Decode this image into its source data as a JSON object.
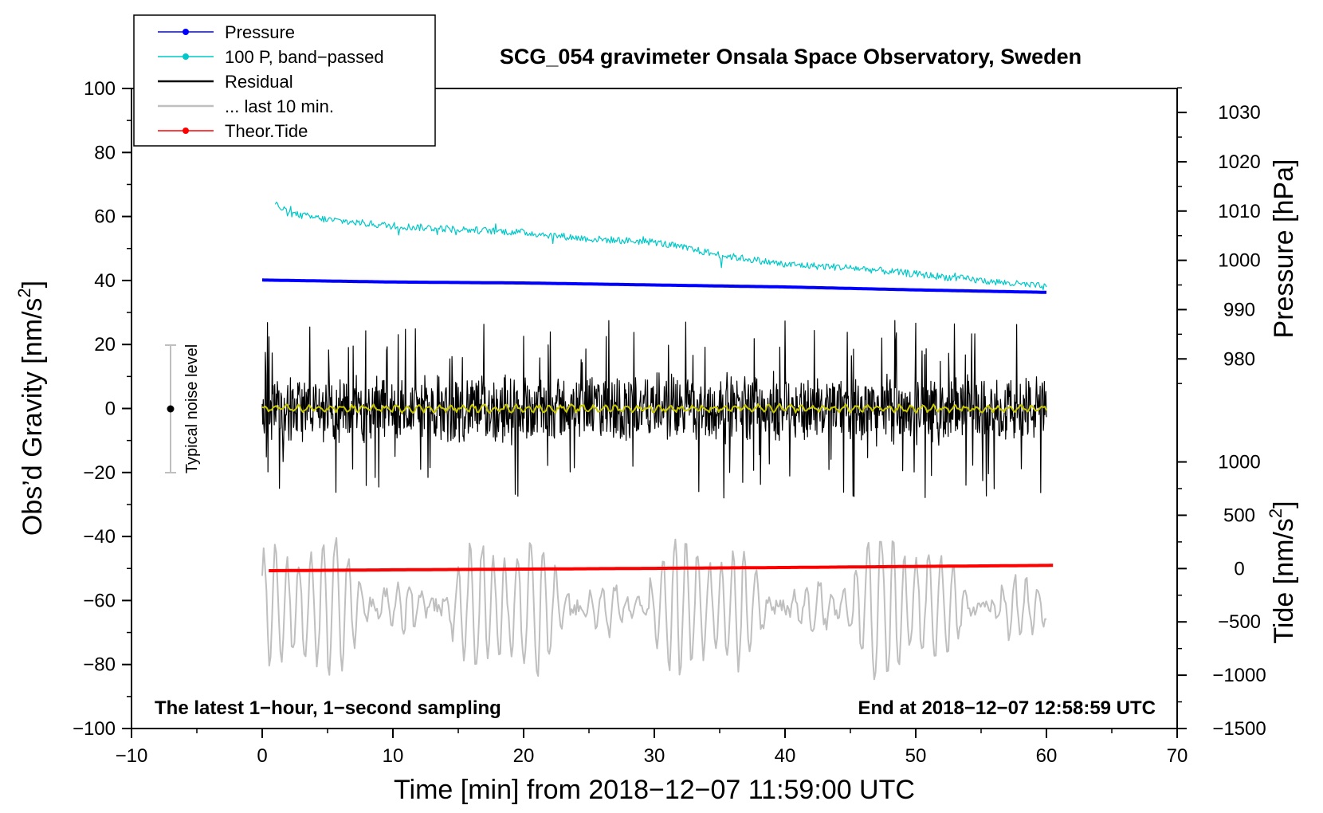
{
  "chart_data": {
    "type": "line",
    "title": "SCG_054 gravimeter Onsala Space Observatory, Sweden",
    "xlabel": "Time [min] from 2018−12−07 11:59:00 UTC",
    "ylabel_left_main": "Obs’d Gravity [nm/s",
    "ylabel_left_sup": "2",
    "ylabel_left_end": "]",
    "ylabel_right_pressure": "Pressure [hPa]",
    "ylabel_right_tide_main": "Tide [nm/s",
    "ylabel_right_tide_sup": "2",
    "ylabel_right_tide_end": "]",
    "xlim": [
      -10,
      70
    ],
    "ylim": [
      -100,
      100
    ],
    "x_ticks": [
      -10,
      0,
      10,
      20,
      30,
      40,
      50,
      60,
      70
    ],
    "x_tick_labels": [
      "−10",
      "0",
      "10",
      "20",
      "30",
      "40",
      "50",
      "60",
      "70"
    ],
    "y_ticks": [
      -100,
      -80,
      -60,
      -40,
      -20,
      0,
      20,
      40,
      60,
      80,
      100
    ],
    "y_tick_labels": [
      "−100",
      "−80",
      "−60",
      "−40",
      "−20",
      "0",
      "20",
      "40",
      "60",
      "80",
      "100"
    ],
    "pressure_axis": {
      "ticks": [
        980,
        990,
        1000,
        1010,
        1020,
        1030
      ],
      "labels": [
        "980",
        "990",
        "1000",
        "1010",
        "1020",
        "1030"
      ],
      "mapping": {
        "p1": 980,
        "g1": 15.5,
        "p2": 1030,
        "g2": 92.5
      }
    },
    "tide_axis": {
      "ticks": [
        -1500,
        -1000,
        -500,
        0,
        500,
        1000
      ],
      "labels": [
        "−1500",
        "−1000",
        "−500",
        "0",
        "500",
        "1000"
      ],
      "mapping": {
        "t1": -1500,
        "g1": -100,
        "t2": 1000,
        "g2": -16.7
      }
    },
    "legend": {
      "placement": "top-left",
      "entries": [
        {
          "label": "Pressure",
          "color": "#0000ff",
          "marker": true
        },
        {
          "label": "100 P, band−passed",
          "color": "#00c8c8",
          "marker": true
        },
        {
          "label": "Residual",
          "color": "#000000",
          "marker": false
        },
        {
          "label": "... last 10 min.",
          "color": "#bfbfbf",
          "marker": false
        },
        {
          "label": "Theor.Tide",
          "color": "#ff0000",
          "marker": true
        }
      ]
    },
    "noise_indicator": {
      "label": "Typical noise level",
      "x": -7,
      "center": 0,
      "low": -20,
      "high": 20
    },
    "annotations": {
      "bottom_left": "The latest 1−hour, 1−second sampling",
      "bottom_right": "End at 2018−12−07 12:58:59 UTC"
    },
    "series": [
      {
        "name": "Pressure",
        "color": "#0000ff",
        "axis": "pressure",
        "x": [
          0,
          10,
          20,
          30,
          40,
          50,
          60
        ],
        "y": [
          996.0,
          995.6,
          995.4,
          995.0,
          994.6,
          994.0,
          993.5
        ]
      },
      {
        "name": "100 P, band-passed",
        "color": "#00c8c8",
        "axis": "gravity",
        "x": [
          1,
          2,
          5,
          10,
          15,
          20,
          25,
          30,
          35,
          40,
          45,
          50,
          55,
          60
        ],
        "y": [
          64,
          61,
          59,
          57,
          56,
          55,
          53,
          52,
          48,
          45,
          44,
          42,
          40,
          38
        ]
      },
      {
        "name": "Residual",
        "color": "#000000",
        "axis": "gravity",
        "x_range": [
          0,
          60
        ],
        "center": 0,
        "typical_amplitude": 10,
        "min": -34,
        "max": 32
      },
      {
        "name": "Residual smoothed",
        "color": "#c8c800",
        "axis": "gravity",
        "x_range": [
          0,
          60
        ],
        "center": 0,
        "typical_amplitude": 1
      },
      {
        "name": "... last 10 min.",
        "color": "#bfbfbf",
        "axis": "gravity",
        "x_range": [
          0,
          60
        ],
        "center": -62,
        "min": -87,
        "max": -37
      },
      {
        "name": "Theor.Tide",
        "color": "#ff0000",
        "axis": "tide",
        "x": [
          0.5,
          10,
          20,
          30,
          40,
          50,
          60.5
        ],
        "y": [
          -20,
          -12,
          -5,
          2,
          10,
          20,
          30
        ]
      }
    ]
  }
}
